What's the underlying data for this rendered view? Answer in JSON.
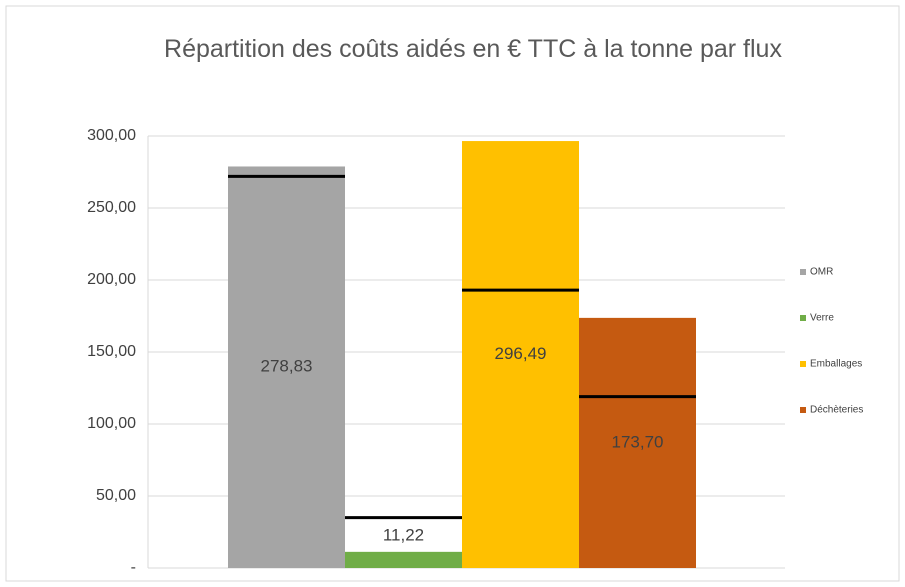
{
  "chart_data": {
    "type": "bar",
    "title": "Répartition des coûts aidés en € TTC à la tonne par flux",
    "categories": [
      null
    ],
    "series": [
      {
        "name": "OMR",
        "color": "#a5a5a5",
        "values": [
          278.83
        ],
        "value_labels": [
          "278,83"
        ],
        "markers": [
          272
        ]
      },
      {
        "name": "Verre",
        "color": "#70ad47",
        "values": [
          11.22
        ],
        "value_labels": [
          "11,22"
        ],
        "markers": [
          35
        ]
      },
      {
        "name": "Emballages",
        "color": "#ffc000",
        "values": [
          296.49
        ],
        "value_labels": [
          "296,49"
        ],
        "markers": [
          193
        ]
      },
      {
        "name": "Déchèteries",
        "color": "#c55a11",
        "values": [
          173.7
        ],
        "value_labels": [
          "173,70"
        ],
        "markers": [
          119
        ]
      }
    ],
    "ylim": [
      0,
      300
    ],
    "yticks": [
      {
        "value": 0,
        "label": "-"
      },
      {
        "value": 50,
        "label": "50,00"
      },
      {
        "value": 100,
        "label": "100,00"
      },
      {
        "value": 150,
        "label": "150,00"
      },
      {
        "value": 200,
        "label": "200,00"
      },
      {
        "value": 250,
        "label": "250,00"
      },
      {
        "value": 300,
        "label": "300,00"
      }
    ],
    "grid": true,
    "legend": "right"
  }
}
